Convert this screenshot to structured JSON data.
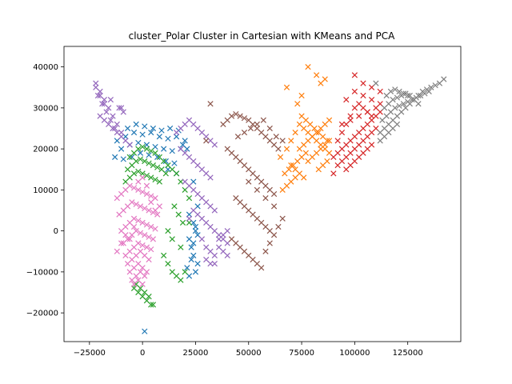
{
  "chart_data": {
    "type": "scatter",
    "title": "cluster_Polar Cluster in Cartesian with KMeans and PCA",
    "xlabel": "",
    "ylabel": "",
    "xlim": [
      -37000,
      150000
    ],
    "ylim": [
      -27000,
      45000
    ],
    "xticks": [
      -25000,
      0,
      25000,
      50000,
      75000,
      100000,
      125000
    ],
    "xtick_labels": [
      "−25000",
      "0",
      "25000",
      "50000",
      "75000",
      "100000",
      "125000"
    ],
    "yticks": [
      -20000,
      -10000,
      0,
      10000,
      20000,
      30000,
      40000
    ],
    "ytick_labels": [
      "−20000",
      "−10000",
      "0",
      "10000",
      "20000",
      "30000",
      "40000"
    ],
    "grid": false,
    "legend": "none",
    "marker": "x",
    "clusters": [
      {
        "color": "#1f77b4",
        "x": [
          -12000,
          -8000,
          -4000,
          0,
          4000,
          8000,
          12000,
          16000,
          20000,
          -10000,
          -6000,
          -2000,
          2000,
          6000,
          10000,
          14000,
          18000,
          -13000,
          -9000,
          -5000,
          -1000,
          3000,
          7000,
          11000,
          15000,
          -7000,
          -3000,
          1000,
          5000,
          9000,
          13000,
          17000,
          19000,
          21000,
          12000,
          16000,
          24000,
          26000,
          22000,
          24000,
          25000,
          22000,
          23000,
          24000,
          26000,
          25000,
          22000,
          21000,
          23000,
          24000,
          26000,
          25000,
          1000
        ],
        "y": [
          22000,
          23000,
          24000,
          23500,
          24000,
          23000,
          22500,
          23000,
          22000,
          20000,
          21000,
          21500,
          21000,
          20500,
          20000,
          19500,
          20000,
          18000,
          17500,
          18000,
          19000,
          18500,
          18000,
          17000,
          16500,
          25000,
          26000,
          25500,
          25000,
          24500,
          25000,
          24500,
          21000,
          20000,
          15000,
          14000,
          12000,
          6000,
          4000,
          2000,
          0,
          -2000,
          -4000,
          -6000,
          -8000,
          -10000,
          -11000,
          -9000,
          -7000,
          -3000,
          -1000,
          1000,
          -24500
        ]
      },
      {
        "color": "#ff7f0e",
        "x": [
          65000,
          68000,
          70000,
          72000,
          74000,
          76000,
          78000,
          80000,
          82000,
          84000,
          86000,
          88000,
          70000,
          72000,
          74000,
          76000,
          78000,
          80000,
          82000,
          84000,
          86000,
          88000,
          75000,
          77000,
          79000,
          81000,
          83000,
          85000,
          87000,
          66000,
          68000,
          70000,
          72000,
          67000,
          69000,
          71000,
          73000,
          75000,
          77000,
          74000,
          76000,
          78000,
          80000,
          82000,
          84000,
          86000,
          88000,
          83000,
          85000,
          87000,
          73000,
          75000,
          68000,
          78000,
          82000,
          84000,
          86000
        ],
        "y": [
          18000,
          20000,
          22000,
          24000,
          26000,
          25000,
          24000,
          23000,
          22000,
          21000,
          20000,
          19000,
          16000,
          15000,
          14000,
          13000,
          17000,
          18000,
          19000,
          20000,
          21000,
          22000,
          28000,
          27000,
          26000,
          25000,
          24000,
          23000,
          22000,
          10000,
          11000,
          12000,
          13000,
          14000,
          15000,
          16000,
          17000,
          18000,
          19000,
          20000,
          21000,
          22000,
          23000,
          24000,
          25000,
          26000,
          27000,
          15000,
          16000,
          17000,
          31000,
          33000,
          35000,
          40000,
          38000,
          36000,
          37000
        ]
      },
      {
        "color": "#2ca02c",
        "x": [
          -6000,
          -4000,
          -2000,
          0,
          2000,
          4000,
          6000,
          8000,
          10000,
          12000,
          14000,
          16000,
          -7000,
          -5000,
          -3000,
          -1000,
          1000,
          3000,
          5000,
          7000,
          9000,
          11000,
          -8000,
          -6000,
          -4000,
          -2000,
          0,
          2000,
          4000,
          6000,
          8000,
          18000,
          20000,
          22000,
          15000,
          17000,
          19000,
          12000,
          14000,
          10000,
          12000,
          14000,
          16000,
          18000,
          20000,
          -4000,
          -2000,
          0,
          2000,
          4000,
          -3000,
          -1000,
          1000,
          3000,
          5000,
          22000,
          18000
        ],
        "y": [
          18000,
          19000,
          20000,
          20500,
          20000,
          19500,
          19000,
          18000,
          17000,
          16000,
          15000,
          14000,
          15000,
          16000,
          17000,
          17500,
          17000,
          16500,
          16000,
          15500,
          15000,
          14000,
          12000,
          13000,
          14000,
          14500,
          14000,
          13500,
          13000,
          12500,
          12000,
          12000,
          10000,
          8000,
          6000,
          4000,
          2000,
          0,
          -2000,
          -6000,
          -8000,
          -10000,
          -11000,
          -12000,
          -10000,
          -14000,
          -15000,
          -16000,
          -17000,
          -18000,
          -13000,
          -14000,
          -15000,
          -16000,
          -18000,
          2000,
          -4000
        ]
      },
      {
        "color": "#d62728",
        "x": [
          90000,
          92000,
          94000,
          96000,
          98000,
          100000,
          102000,
          104000,
          106000,
          108000,
          110000,
          112000,
          92000,
          94000,
          96000,
          98000,
          100000,
          102000,
          104000,
          106000,
          108000,
          110000,
          94000,
          96000,
          98000,
          100000,
          102000,
          104000,
          106000,
          108000,
          96000,
          98000,
          100000,
          102000,
          104000,
          106000,
          108000,
          90000,
          92000,
          96000,
          100000,
          104000,
          108000,
          110000,
          112000,
          94000,
          98000,
          102000,
          106000,
          104000,
          108000,
          112000,
          100000
        ],
        "y": [
          18000,
          19000,
          20000,
          21000,
          22000,
          23000,
          24000,
          25000,
          26000,
          27000,
          28000,
          29000,
          16000,
          17000,
          18000,
          19000,
          20000,
          21000,
          22000,
          23000,
          24000,
          25000,
          24000,
          26000,
          28000,
          30000,
          31000,
          30000,
          29000,
          28000,
          15000,
          16000,
          17000,
          18000,
          19000,
          20000,
          21000,
          14000,
          22000,
          32000,
          34000,
          33000,
          32000,
          30000,
          31000,
          26000,
          27000,
          28000,
          29000,
          36000,
          35000,
          34000,
          38000
        ]
      },
      {
        "color": "#9467bd",
        "x": [
          -22000,
          -20000,
          -18000,
          -16000,
          -14000,
          -12000,
          -10000,
          -21000,
          -19000,
          -17000,
          -15000,
          -13000,
          -11000,
          -9000,
          -20000,
          -18000,
          -16000,
          -14000,
          -12000,
          -10000,
          -8000,
          -6000,
          16000,
          18000,
          20000,
          22000,
          24000,
          26000,
          28000,
          30000,
          32000,
          34000,
          18000,
          20000,
          22000,
          24000,
          26000,
          28000,
          30000,
          32000,
          20000,
          22000,
          24000,
          26000,
          28000,
          30000,
          32000,
          34000,
          26000,
          28000,
          30000,
          32000,
          34000,
          36000,
          38000,
          40000,
          36000,
          38000,
          40000,
          30000,
          32000,
          34000,
          22000,
          24000,
          28000,
          30000,
          32000,
          34000,
          36000,
          38000,
          40000,
          -22000,
          -20000,
          -18000,
          -15000,
          -10000
        ],
        "y": [
          36000,
          34000,
          32000,
          30000,
          28000,
          26000,
          24000,
          33000,
          31000,
          29000,
          27000,
          25000,
          30000,
          29000,
          28000,
          27000,
          26000,
          25000,
          24000,
          23000,
          22000,
          21000,
          24000,
          25000,
          26000,
          27000,
          26000,
          25000,
          24000,
          23000,
          22000,
          21000,
          20000,
          19000,
          18000,
          17000,
          16000,
          15000,
          14000,
          13000,
          12000,
          11000,
          10000,
          9000,
          8000,
          7000,
          6000,
          5000,
          4000,
          3000,
          2000,
          1000,
          0,
          -1000,
          -2000,
          -3000,
          -4000,
          -5000,
          -6000,
          -7000,
          -8000,
          -8000,
          3000,
          5000,
          -2000,
          -4000,
          -5000,
          -6000,
          -2000,
          -1000,
          0,
          35000,
          33000,
          31000,
          32000,
          30000
        ]
      },
      {
        "color": "#8c564b",
        "x": [
          38000,
          40000,
          42000,
          44000,
          46000,
          48000,
          50000,
          52000,
          54000,
          56000,
          58000,
          60000,
          62000,
          64000,
          40000,
          42000,
          44000,
          46000,
          48000,
          50000,
          52000,
          54000,
          56000,
          58000,
          60000,
          62000,
          44000,
          46000,
          48000,
          50000,
          52000,
          54000,
          56000,
          58000,
          60000,
          42000,
          44000,
          46000,
          48000,
          50000,
          52000,
          54000,
          56000,
          58000,
          60000,
          62000,
          64000,
          66000,
          45000,
          48000,
          51000,
          54000,
          57000,
          60000,
          63000,
          66000,
          30000,
          32000,
          50000,
          54000,
          58000,
          62000
        ],
        "y": [
          26000,
          27000,
          28000,
          28500,
          28000,
          27500,
          27000,
          26000,
          25000,
          24000,
          23000,
          22000,
          21000,
          20000,
          20000,
          19000,
          18000,
          17000,
          16000,
          15000,
          14000,
          13000,
          12000,
          11000,
          10000,
          9000,
          8000,
          7000,
          6000,
          5000,
          4000,
          3000,
          2000,
          1000,
          0,
          -2000,
          -3000,
          -4000,
          -5000,
          -6000,
          -7000,
          -8000,
          -9000,
          -5000,
          -3000,
          -1000,
          1000,
          3000,
          23000,
          24000,
          25000,
          26000,
          27000,
          25000,
          23000,
          22000,
          22000,
          31000,
          12000,
          10000,
          8000,
          6000
        ]
      },
      {
        "color": "#e377c2",
        "x": [
          -12000,
          -10000,
          -8000,
          -6000,
          -4000,
          -2000,
          0,
          2000,
          4000,
          6000,
          -11000,
          -9000,
          -7000,
          -5000,
          -3000,
          -1000,
          1000,
          3000,
          5000,
          7000,
          -10000,
          -8000,
          -6000,
          -4000,
          -2000,
          0,
          2000,
          4000,
          6000,
          -9000,
          -7000,
          -5000,
          -3000,
          -1000,
          1000,
          3000,
          5000,
          -8000,
          -6000,
          -4000,
          -2000,
          0,
          2000,
          4000,
          -7000,
          -5000,
          -3000,
          -1000,
          1000,
          3000,
          -6000,
          -4000,
          -2000,
          0,
          2000,
          -5000,
          -3000,
          -1000,
          1000,
          -4000,
          -2000,
          0,
          -12000,
          -10000,
          -8000,
          -6000,
          -4000,
          -2000,
          0,
          2000,
          4000,
          6000,
          8000
        ],
        "y": [
          8000,
          9000,
          10000,
          11000,
          10500,
          10000,
          9500,
          9000,
          8500,
          8000,
          4000,
          5000,
          6000,
          7000,
          6500,
          6000,
          5500,
          5000,
          4500,
          4000,
          0,
          1000,
          2000,
          3000,
          2500,
          2000,
          1500,
          1000,
          500,
          -3000,
          -2000,
          -1000,
          0,
          -500,
          -1000,
          -1500,
          -2000,
          -6000,
          -5000,
          -4000,
          -3000,
          -3500,
          -4000,
          -4500,
          -8000,
          -7000,
          -6000,
          -5000,
          -6000,
          -7000,
          -10000,
          -9000,
          -8000,
          -9000,
          -10000,
          -12000,
          -11000,
          -10000,
          -11000,
          -13000,
          -12000,
          -13000,
          -5000,
          -3000,
          -1000,
          -2000,
          1000,
          12000,
          13000,
          11000,
          7000,
          5000,
          6000
        ]
      },
      {
        "color": "#7f7f7f",
        "x": [
          112000,
          114000,
          116000,
          118000,
          120000,
          122000,
          124000,
          126000,
          128000,
          130000,
          132000,
          134000,
          136000,
          138000,
          140000,
          142000,
          113000,
          115000,
          117000,
          119000,
          121000,
          123000,
          125000,
          127000,
          129000,
          131000,
          133000,
          135000,
          114000,
          116000,
          118000,
          120000,
          122000,
          124000,
          126000,
          128000,
          130000,
          115000,
          117000,
          119000,
          121000,
          123000,
          125000,
          112000,
          114000,
          116000,
          118000,
          120000,
          110000
        ],
        "y": [
          24000,
          25000,
          26000,
          27000,
          28000,
          29000,
          30000,
          31000,
          32000,
          33000,
          34000,
          34500,
          35000,
          35500,
          36000,
          37000,
          27000,
          28000,
          29000,
          30000,
          30500,
          31000,
          31500,
          32000,
          32500,
          33000,
          33500,
          34000,
          30000,
          31000,
          32000,
          32500,
          33000,
          33500,
          33000,
          32000,
          31000,
          33000,
          34000,
          34500,
          34000,
          33500,
          33000,
          22000,
          23000,
          24000,
          25000,
          26000,
          36000
        ]
      }
    ]
  }
}
